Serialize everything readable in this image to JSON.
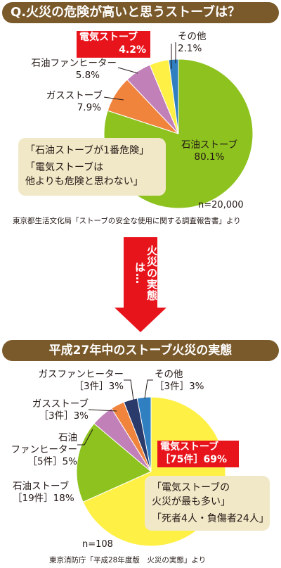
{
  "header1": {
    "title": "Q.火災の危険が高いと思うストーブは？"
  },
  "header2": {
    "title": "平成27年中のストーブ火災の実態"
  },
  "arrow": {
    "text": "火災の実態は…"
  },
  "chart1": {
    "label_stone": "石油ストーブ",
    "value_stone": "80.1%",
    "label_gas": "ガスストーブ",
    "value_gas": "7.9%",
    "label_fan": "石油ファンヒーター",
    "value_fan": "5.8%",
    "label_elec": "電気ストーブ",
    "value_elec": "4.2%",
    "label_other": "その他",
    "value_other": "2.1%",
    "note_line1": "「石油ストーブが1番危険」",
    "note_line2": "「電気ストーブは",
    "note_line3": "他よりも危険と思わない」",
    "n": "n=20,000",
    "source": "東京都生活文化局「ストーブの安全な使用に関する調査報告書」より"
  },
  "chart2": {
    "label_elec": "電気ストーブ",
    "value_elec": "［75件］69%",
    "label_stone": "石油ストーブ",
    "value_stone": "［19件］18%",
    "label_fan_a": "石油",
    "label_fan_b": "ファンヒーター",
    "value_fan": "［5件］5%",
    "label_gas": "ガスストーブ",
    "value_gas": "［3件］3%",
    "label_gasfan": "ガスファンヒーター",
    "value_gasfan": "［3件］3%",
    "label_other": "その他",
    "value_other": "［3件］3%",
    "note_line1": "「電気ストーブの",
    "note_line2": "火災が最も多い」",
    "note_line3": "「死者4人・負傷者24人」",
    "n": "n=108",
    "source": "東京消防庁「平成28年度版　火災の実態」より"
  },
  "chart_data": [
    {
      "type": "pie",
      "title": "Q.火災の危険が高いと思うストーブは？",
      "categories": [
        "石油ストーブ",
        "ガスストーブ",
        "石油ファンヒーター",
        "電気ストーブ",
        "その他"
      ],
      "values": [
        80.1,
        7.9,
        5.8,
        4.2,
        2.1
      ],
      "colors": [
        "#8dc21f",
        "#f0843c",
        "#c280b8",
        "#fff046",
        "#2f7fc1"
      ],
      "n": 20000
    },
    {
      "type": "pie",
      "title": "平成27年中のストーブ火災の実態",
      "categories": [
        "電気ストーブ",
        "石油ストーブ",
        "石油ファンヒーター",
        "ガスストーブ",
        "ガスファンヒーター",
        "その他"
      ],
      "counts": [
        75,
        19,
        5,
        3,
        3,
        3
      ],
      "values": [
        69,
        18,
        5,
        3,
        3,
        3
      ],
      "colors": [
        "#fff046",
        "#8dc21f",
        "#c280b8",
        "#f0843c",
        "#2a3a6a",
        "#2f7fc1"
      ],
      "n": 108
    }
  ]
}
